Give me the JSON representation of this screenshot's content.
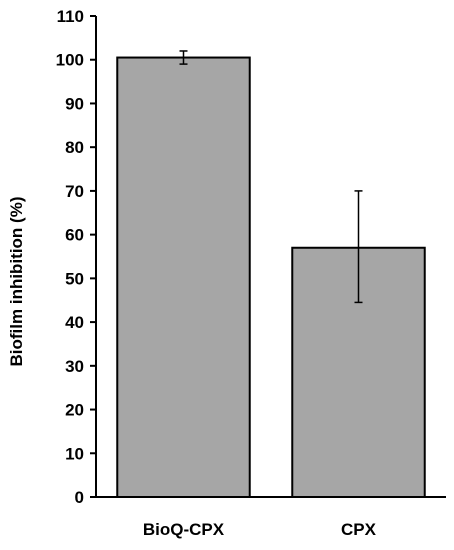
{
  "chart_data": {
    "type": "bar",
    "title": "",
    "xlabel": "",
    "ylabel": "Biofilm inhibition (%)",
    "categories": [
      "BioQ-CPX",
      "CPX"
    ],
    "values": [
      100.5,
      57
    ],
    "error_bars": [
      [
        99,
        102
      ],
      [
        44.5,
        70
      ]
    ],
    "ylim": [
      0,
      110
    ],
    "yticks": [
      0,
      10,
      20,
      30,
      40,
      50,
      60,
      70,
      80,
      90,
      100,
      110
    ],
    "grid": false,
    "legend": "none",
    "bar_color": "#a6a6a6",
    "bar_edge_color": "#000000"
  }
}
